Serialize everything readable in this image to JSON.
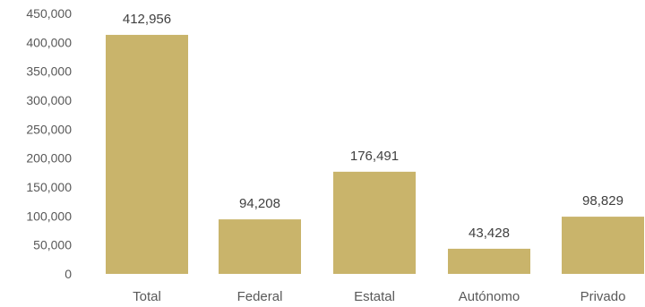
{
  "chart_data": {
    "type": "bar",
    "categories": [
      "Total",
      "Federal",
      "Estatal",
      "Autónomo",
      "Privado"
    ],
    "values": [
      412956,
      94208,
      176491,
      43428,
      98829
    ],
    "value_labels": [
      "412,956",
      "94,208",
      "176,491",
      "43,428",
      "98,829"
    ],
    "yticks": [
      0,
      50000,
      100000,
      150000,
      200000,
      250000,
      300000,
      350000,
      400000,
      450000
    ],
    "ytick_labels": [
      "0",
      "50,000",
      "100,000",
      "150,000",
      "200,000",
      "250,000",
      "300,000",
      "350,000",
      "400,000",
      "450,000"
    ],
    "ylim": [
      0,
      450000
    ],
    "grid": false,
    "legend": "none",
    "bar_color": "#C9B46B"
  }
}
